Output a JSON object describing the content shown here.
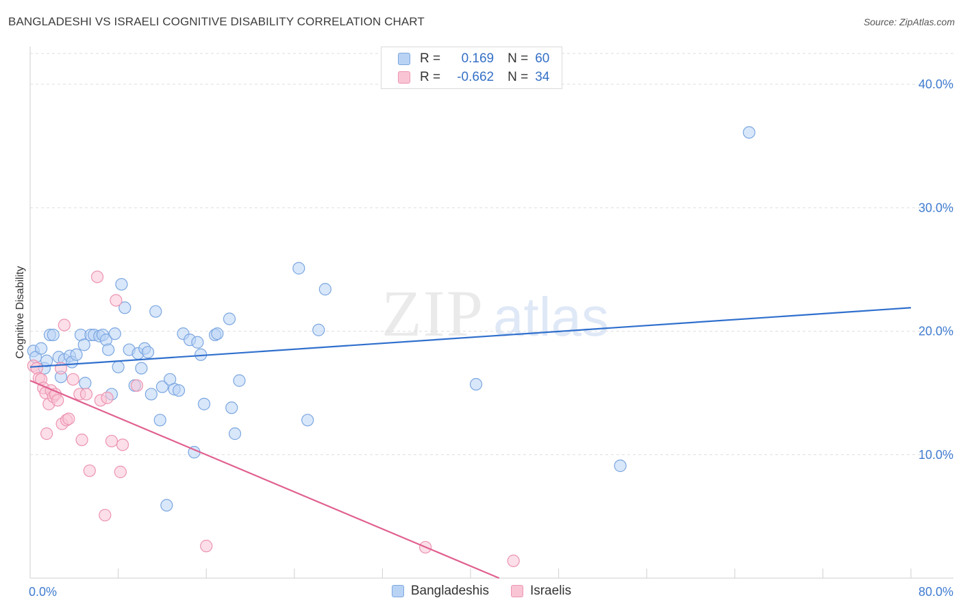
{
  "header": {
    "title": "BANGLADESHI VS ISRAELI COGNITIVE DISABILITY CORRELATION CHART",
    "source": "Source: ZipAtlas.com"
  },
  "legend": {
    "rows": [
      {
        "r_label": "R =",
        "r_value": "0.169",
        "n_label": "N =",
        "n_value": "60"
      },
      {
        "r_label": "R =",
        "r_value": "-0.662",
        "n_label": "N =",
        "n_value": "34"
      }
    ],
    "bottom": [
      "Bangladeshis",
      "Israelis"
    ]
  },
  "watermark": {
    "zip": "ZIP",
    "atlas": "atlas"
  },
  "colors": {
    "blue_fill": "#b9d3f5",
    "blue_stroke": "#7aa6e0",
    "blue_line": "#2f6fcd",
    "pink_fill": "#f9c5d5",
    "pink_stroke": "#ec93b0",
    "pink_line": "#e0608f",
    "tick_label": "#3f7bd0",
    "grid": "#dedede"
  },
  "chart_data": {
    "type": "scatter",
    "title": "BANGLADESHI VS ISRAELI COGNITIVE DISABILITY CORRELATION CHART",
    "xlabel": "",
    "ylabel": "Cognitive Disability",
    "xlim": [
      0,
      80
    ],
    "ylim": [
      0,
      42.5
    ],
    "x_tick_labels": [
      "0.0%",
      "80.0%"
    ],
    "y_ticks": [
      10,
      20,
      30,
      40
    ],
    "y_tick_labels": [
      "10.0%",
      "20.0%",
      "30.0%",
      "40.0%"
    ],
    "series": [
      {
        "name": "Bangladeshis",
        "color": "blue",
        "R": 0.169,
        "N": 60,
        "trend": [
          [
            0,
            17.1
          ],
          [
            80,
            21.9
          ]
        ],
        "points": [
          [
            0.3,
            18.4
          ],
          [
            0.5,
            17.9
          ],
          [
            1.0,
            18.6
          ],
          [
            1.3,
            17.0
          ],
          [
            1.5,
            17.6
          ],
          [
            1.8,
            19.7
          ],
          [
            2.1,
            19.7
          ],
          [
            2.6,
            17.9
          ],
          [
            2.8,
            16.3
          ],
          [
            3.1,
            17.7
          ],
          [
            3.6,
            18.0
          ],
          [
            3.8,
            17.5
          ],
          [
            4.2,
            18.1
          ],
          [
            4.6,
            19.7
          ],
          [
            4.9,
            18.9
          ],
          [
            5.0,
            15.8
          ],
          [
            5.5,
            19.7
          ],
          [
            5.8,
            19.7
          ],
          [
            6.3,
            19.6
          ],
          [
            6.6,
            19.7
          ],
          [
            6.9,
            19.3
          ],
          [
            7.1,
            18.5
          ],
          [
            7.4,
            14.9
          ],
          [
            7.7,
            19.8
          ],
          [
            8.0,
            17.1
          ],
          [
            8.3,
            23.8
          ],
          [
            8.6,
            21.9
          ],
          [
            9.0,
            18.5
          ],
          [
            9.5,
            15.6
          ],
          [
            9.8,
            18.2
          ],
          [
            10.1,
            17.0
          ],
          [
            10.4,
            18.6
          ],
          [
            10.7,
            18.3
          ],
          [
            11.0,
            14.9
          ],
          [
            11.4,
            21.6
          ],
          [
            11.8,
            12.8
          ],
          [
            12.0,
            15.5
          ],
          [
            12.7,
            16.1
          ],
          [
            13.1,
            15.3
          ],
          [
            13.5,
            15.2
          ],
          [
            13.9,
            19.8
          ],
          [
            14.5,
            19.3
          ],
          [
            14.9,
            10.2
          ],
          [
            15.2,
            19.1
          ],
          [
            15.5,
            18.1
          ],
          [
            15.8,
            14.1
          ],
          [
            16.8,
            19.7
          ],
          [
            17.0,
            19.8
          ],
          [
            18.1,
            21.0
          ],
          [
            18.3,
            13.8
          ],
          [
            18.6,
            11.7
          ],
          [
            19.0,
            16.0
          ],
          [
            24.4,
            25.1
          ],
          [
            25.2,
            12.8
          ],
          [
            26.2,
            20.1
          ],
          [
            26.8,
            23.4
          ],
          [
            40.5,
            15.7
          ],
          [
            53.6,
            9.1
          ],
          [
            65.3,
            36.1
          ],
          [
            12.4,
            5.9
          ]
        ]
      },
      {
        "name": "Israelis",
        "color": "pink",
        "R": -0.662,
        "N": 34,
        "trend": [
          [
            0,
            16.0
          ],
          [
            42.6,
            0.0
          ]
        ],
        "points": [
          [
            0.3,
            17.2
          ],
          [
            0.6,
            17.0
          ],
          [
            0.8,
            16.2
          ],
          [
            1.0,
            16.1
          ],
          [
            1.2,
            15.4
          ],
          [
            1.4,
            15.0
          ],
          [
            1.5,
            11.7
          ],
          [
            1.7,
            14.1
          ],
          [
            1.9,
            15.2
          ],
          [
            2.1,
            14.7
          ],
          [
            2.3,
            14.9
          ],
          [
            2.5,
            14.4
          ],
          [
            2.8,
            17.0
          ],
          [
            2.9,
            12.5
          ],
          [
            3.1,
            20.5
          ],
          [
            3.3,
            12.8
          ],
          [
            3.5,
            12.9
          ],
          [
            3.9,
            16.1
          ],
          [
            4.5,
            14.9
          ],
          [
            4.7,
            11.2
          ],
          [
            5.1,
            14.9
          ],
          [
            5.4,
            8.7
          ],
          [
            6.1,
            24.4
          ],
          [
            6.4,
            14.4
          ],
          [
            6.8,
            5.1
          ],
          [
            7.0,
            14.6
          ],
          [
            7.4,
            11.1
          ],
          [
            7.8,
            22.5
          ],
          [
            8.2,
            8.6
          ],
          [
            8.4,
            10.8
          ],
          [
            9.7,
            15.6
          ],
          [
            16.0,
            2.6
          ],
          [
            35.9,
            2.5
          ],
          [
            43.9,
            1.4
          ]
        ]
      }
    ]
  }
}
